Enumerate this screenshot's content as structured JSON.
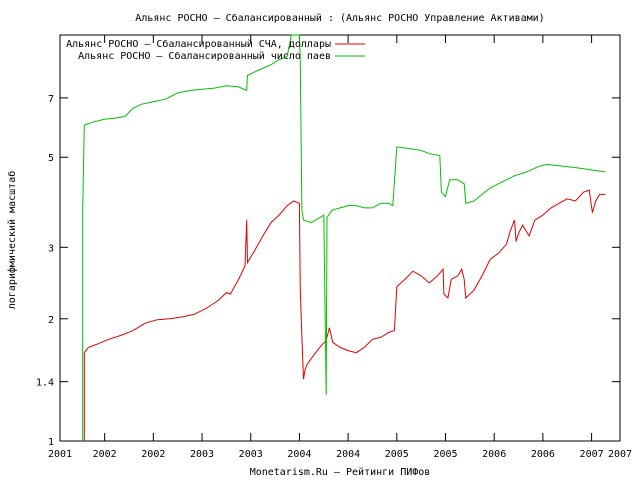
{
  "title": "Альянс РОСНО – Сбалансированный : (Альянс РОСНО Управление Активами)",
  "colors": {
    "nav": "#e00000",
    "units": "#00c000",
    "axis": "#000000"
  },
  "chart_data": {
    "type": "line",
    "title": "Альянс РОСНО – Сбалансированный : (Альянс РОСНО Управление Активами)",
    "xlabel": "Monetarism.Ru – Рейтинги ПИФов",
    "ylabel": "логарифмический масштаб",
    "y_scale": "log",
    "xlim": [
      2001.0,
      2007.9
    ],
    "ylim": [
      1.0,
      10.0
    ],
    "grid": false,
    "legend_position": "top-left",
    "x_tick_labels": [
      "2001",
      "2002",
      "2002",
      "2003",
      "2003",
      "2004",
      "2004",
      "2005",
      "2005",
      "2006",
      "2006",
      "2007",
      "2007"
    ],
    "x_tick_values": [
      2001.0,
      2001.55,
      2002.15,
      2002.75,
      2003.35,
      2003.95,
      2004.55,
      2005.15,
      2005.75,
      2006.35,
      2006.95,
      2007.55,
      2008.15
    ],
    "y_tick_values": [
      1,
      1.4,
      2,
      3,
      5,
      7
    ],
    "y_tick_labels": [
      "1",
      "1.4",
      "2",
      "3",
      "5",
      "7"
    ],
    "series": [
      {
        "name": "Альянс РОСНО – Сбалансированный СЧА, доллары",
        "color": "#e00000",
        "points": [
          [
            2001.3,
            1.0
          ],
          [
            2001.3,
            1.65
          ],
          [
            2001.35,
            1.7
          ],
          [
            2001.45,
            1.73
          ],
          [
            2001.6,
            1.78
          ],
          [
            2001.75,
            1.82
          ],
          [
            2001.9,
            1.87
          ],
          [
            2002.05,
            1.95
          ],
          [
            2002.2,
            1.99
          ],
          [
            2002.35,
            2.0
          ],
          [
            2002.5,
            2.02
          ],
          [
            2002.65,
            2.05
          ],
          [
            2002.8,
            2.12
          ],
          [
            2002.95,
            2.22
          ],
          [
            2003.05,
            2.32
          ],
          [
            2003.1,
            2.3
          ],
          [
            2003.2,
            2.5
          ],
          [
            2003.28,
            2.7
          ],
          [
            2003.3,
            3.5
          ],
          [
            2003.31,
            2.75
          ],
          [
            2003.4,
            2.95
          ],
          [
            2003.5,
            3.2
          ],
          [
            2003.6,
            3.45
          ],
          [
            2003.7,
            3.6
          ],
          [
            2003.8,
            3.8
          ],
          [
            2003.88,
            3.9
          ],
          [
            2003.95,
            3.85
          ],
          [
            2003.96,
            2.4
          ],
          [
            2003.98,
            1.8
          ],
          [
            2004.0,
            1.42
          ],
          [
            2004.02,
            1.5
          ],
          [
            2004.05,
            1.55
          ],
          [
            2004.1,
            1.6
          ],
          [
            2004.2,
            1.7
          ],
          [
            2004.28,
            1.77
          ],
          [
            2004.32,
            1.9
          ],
          [
            2004.36,
            1.75
          ],
          [
            2004.45,
            1.7
          ],
          [
            2004.55,
            1.67
          ],
          [
            2004.65,
            1.65
          ],
          [
            2004.75,
            1.7
          ],
          [
            2004.85,
            1.78
          ],
          [
            2004.95,
            1.8
          ],
          [
            2005.05,
            1.85
          ],
          [
            2005.12,
            1.87
          ],
          [
            2005.15,
            2.4
          ],
          [
            2005.25,
            2.5
          ],
          [
            2005.35,
            2.62
          ],
          [
            2005.45,
            2.55
          ],
          [
            2005.55,
            2.45
          ],
          [
            2005.65,
            2.55
          ],
          [
            2005.72,
            2.65
          ],
          [
            2005.73,
            2.3
          ],
          [
            2005.78,
            2.25
          ],
          [
            2005.82,
            2.5
          ],
          [
            2005.9,
            2.55
          ],
          [
            2005.95,
            2.65
          ],
          [
            2005.98,
            2.5
          ],
          [
            2006.0,
            2.25
          ],
          [
            2006.1,
            2.35
          ],
          [
            2006.2,
            2.55
          ],
          [
            2006.3,
            2.8
          ],
          [
            2006.4,
            2.9
          ],
          [
            2006.5,
            3.05
          ],
          [
            2006.55,
            3.3
          ],
          [
            2006.6,
            3.5
          ],
          [
            2006.62,
            3.1
          ],
          [
            2006.65,
            3.25
          ],
          [
            2006.7,
            3.4
          ],
          [
            2006.78,
            3.2
          ],
          [
            2006.85,
            3.5
          ],
          [
            2006.95,
            3.6
          ],
          [
            2007.05,
            3.75
          ],
          [
            2007.15,
            3.85
          ],
          [
            2007.25,
            3.95
          ],
          [
            2007.35,
            3.9
          ],
          [
            2007.45,
            4.1
          ],
          [
            2007.52,
            4.15
          ],
          [
            2007.56,
            3.65
          ],
          [
            2007.6,
            3.9
          ],
          [
            2007.65,
            4.05
          ],
          [
            2007.72,
            4.05
          ]
        ]
      },
      {
        "name": "Альянс РОСНО – Сбалансированный число паев",
        "color": "#00c000",
        "points": [
          [
            2001.28,
            1.0
          ],
          [
            2001.28,
            3.7
          ],
          [
            2001.3,
            6.0
          ],
          [
            2001.4,
            6.1
          ],
          [
            2001.55,
            6.2
          ],
          [
            2001.7,
            6.25
          ],
          [
            2001.8,
            6.3
          ],
          [
            2001.9,
            6.6
          ],
          [
            2002.0,
            6.75
          ],
          [
            2002.15,
            6.85
          ],
          [
            2002.3,
            6.95
          ],
          [
            2002.45,
            7.2
          ],
          [
            2002.6,
            7.3
          ],
          [
            2002.75,
            7.35
          ],
          [
            2002.9,
            7.4
          ],
          [
            2003.05,
            7.5
          ],
          [
            2003.2,
            7.45
          ],
          [
            2003.3,
            7.3
          ],
          [
            2003.31,
            7.95
          ],
          [
            2003.45,
            8.2
          ],
          [
            2003.6,
            8.45
          ],
          [
            2003.7,
            8.7
          ],
          [
            2003.8,
            8.85
          ],
          [
            2003.85,
            10.0
          ],
          [
            2003.95,
            10.0
          ],
          [
            2003.96,
            8.8
          ],
          [
            2003.98,
            3.7
          ],
          [
            2004.0,
            3.5
          ],
          [
            2004.1,
            3.45
          ],
          [
            2004.2,
            3.55
          ],
          [
            2004.25,
            3.6
          ],
          [
            2004.28,
            1.3
          ],
          [
            2004.29,
            3.55
          ],
          [
            2004.35,
            3.7
          ],
          [
            2004.45,
            3.75
          ],
          [
            2004.55,
            3.8
          ],
          [
            2004.65,
            3.8
          ],
          [
            2004.75,
            3.75
          ],
          [
            2004.85,
            3.75
          ],
          [
            2004.95,
            3.85
          ],
          [
            2005.05,
            3.85
          ],
          [
            2005.1,
            3.8
          ],
          [
            2005.15,
            5.3
          ],
          [
            2005.3,
            5.25
          ],
          [
            2005.45,
            5.2
          ],
          [
            2005.55,
            5.1
          ],
          [
            2005.68,
            5.05
          ],
          [
            2005.7,
            4.1
          ],
          [
            2005.75,
            4.0
          ],
          [
            2005.8,
            4.4
          ],
          [
            2005.9,
            4.4
          ],
          [
            2005.98,
            4.3
          ],
          [
            2006.0,
            3.85
          ],
          [
            2006.1,
            3.9
          ],
          [
            2006.2,
            4.05
          ],
          [
            2006.3,
            4.2
          ],
          [
            2006.4,
            4.3
          ],
          [
            2006.5,
            4.4
          ],
          [
            2006.6,
            4.5
          ],
          [
            2006.75,
            4.6
          ],
          [
            2006.9,
            4.75
          ],
          [
            2007.0,
            4.8
          ],
          [
            2007.2,
            4.75
          ],
          [
            2007.4,
            4.7
          ],
          [
            2007.55,
            4.65
          ],
          [
            2007.72,
            4.6
          ]
        ]
      }
    ]
  }
}
